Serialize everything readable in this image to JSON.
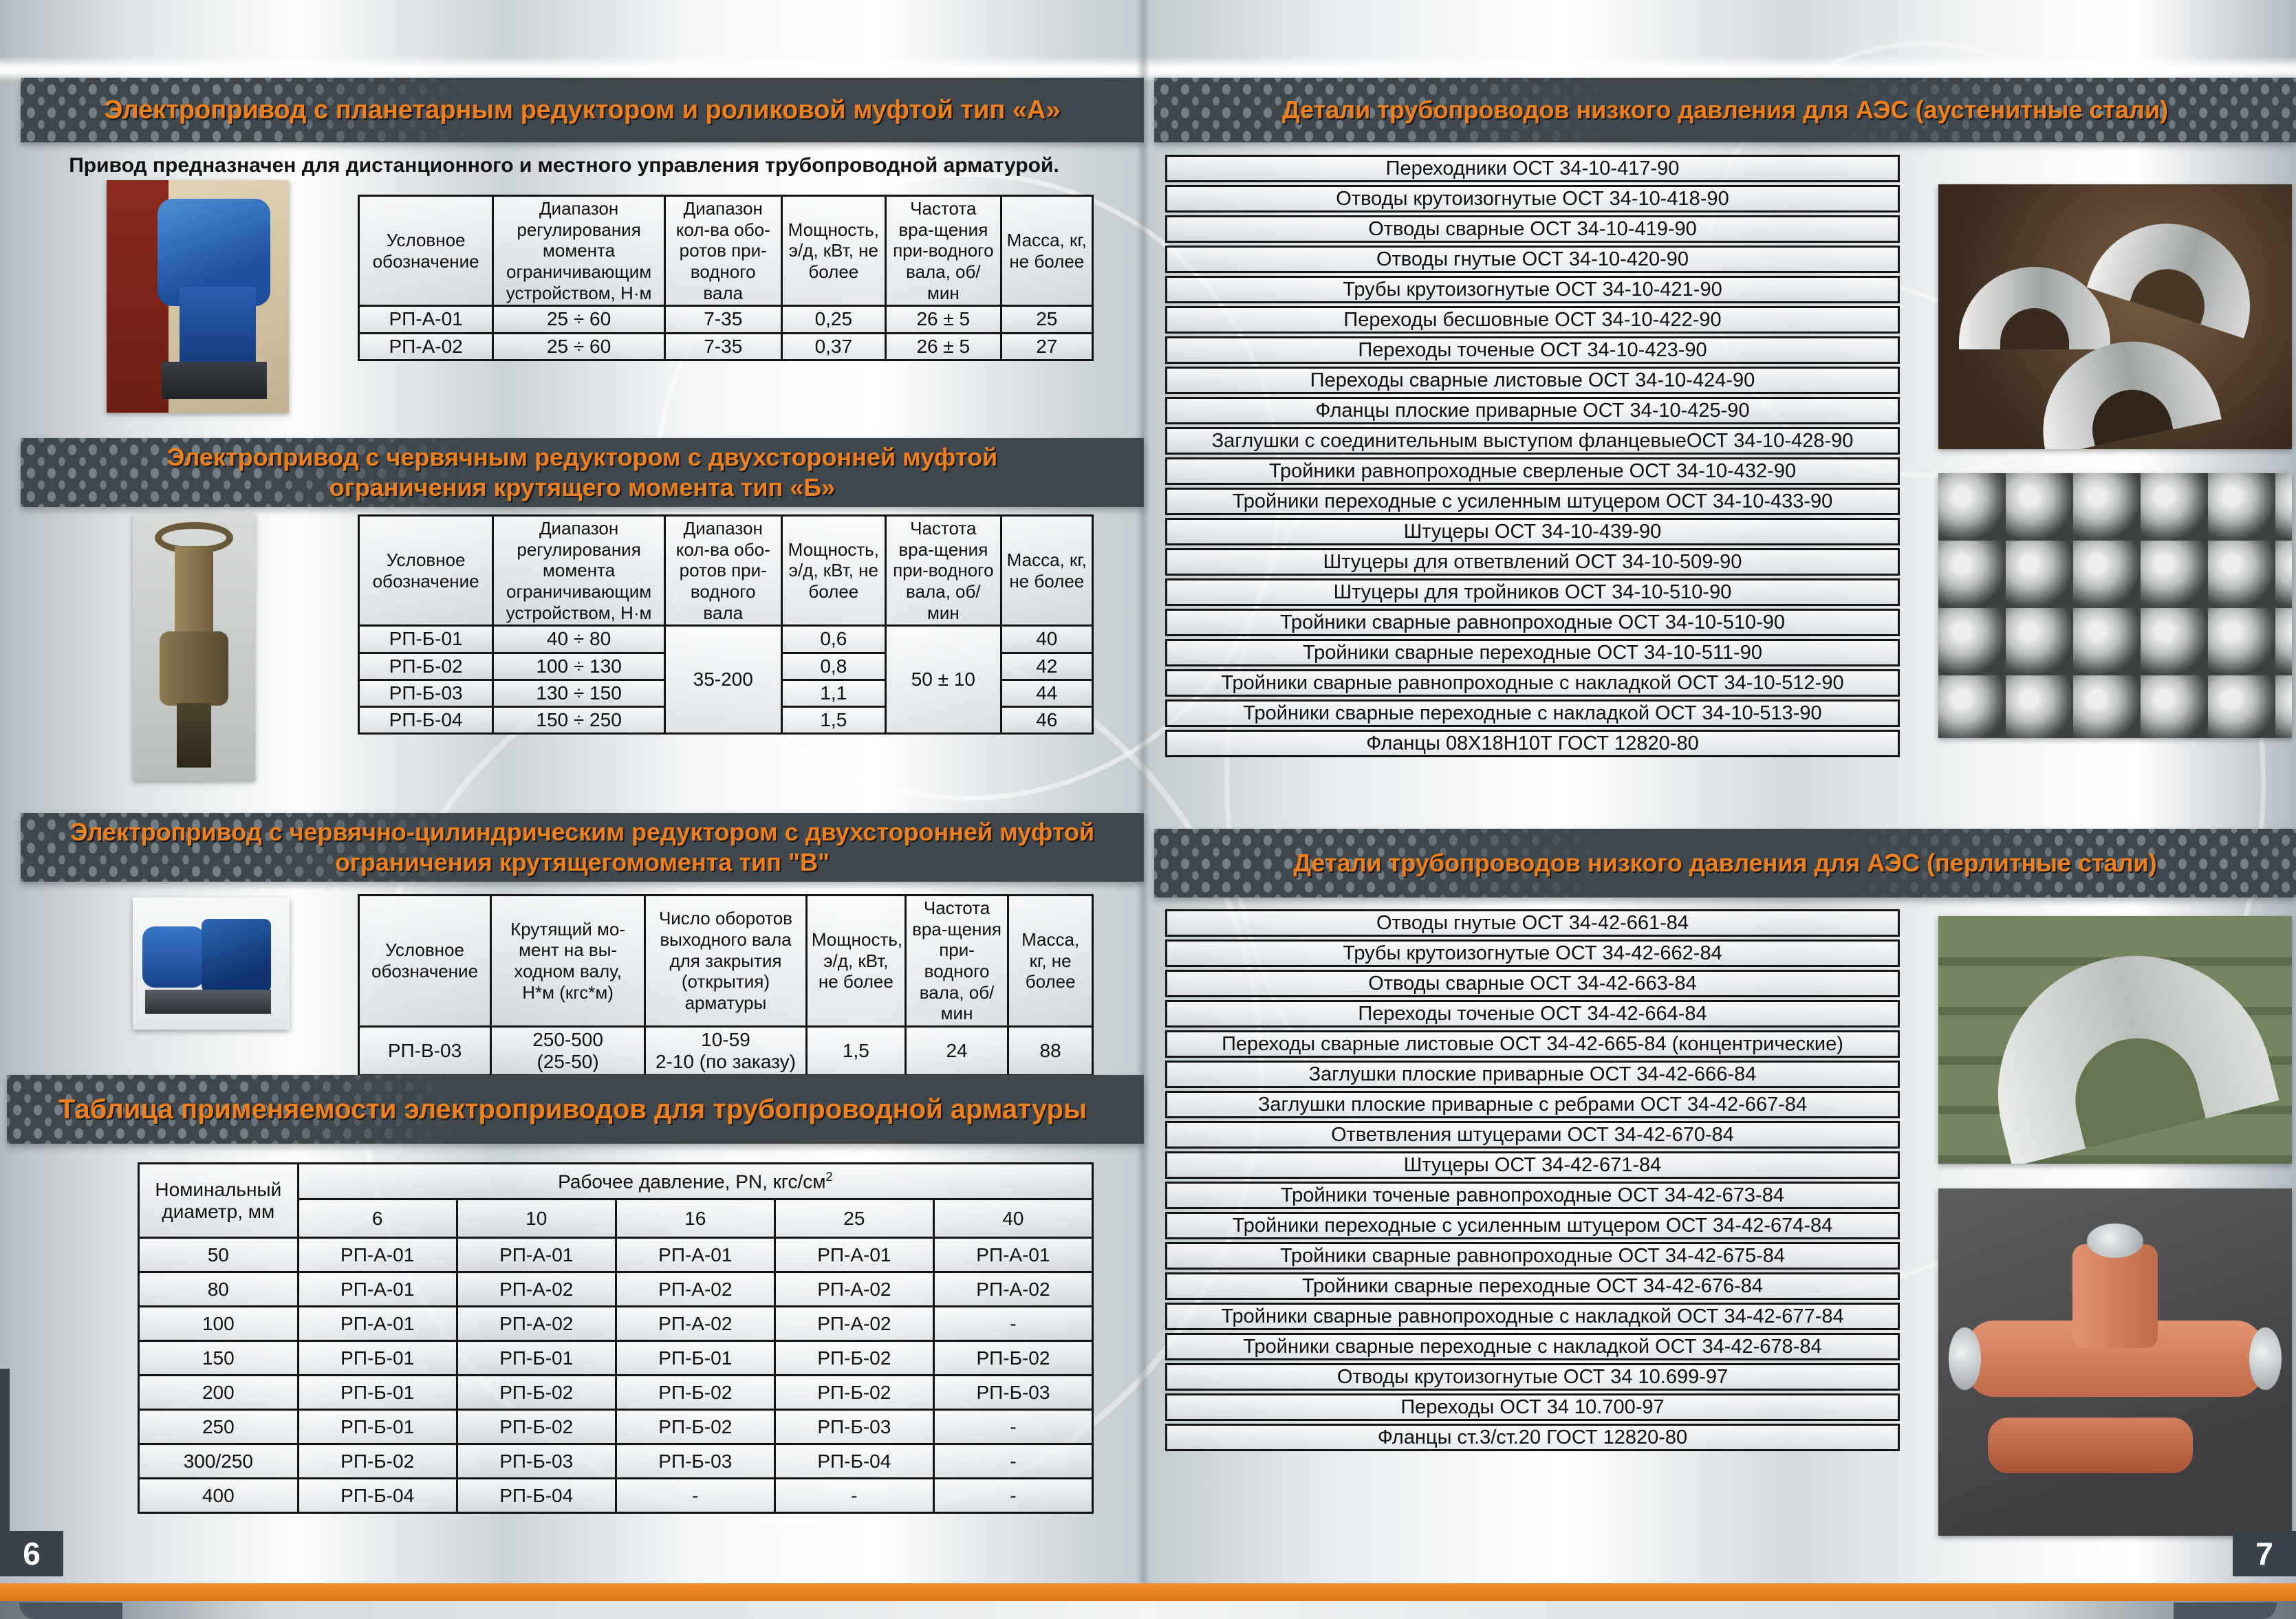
{
  "left": {
    "page_number": "6",
    "intro": "Привод предназначен для дистанционного и местного управления трубопроводной арматурой.",
    "spec_headers": [
      "Условное обозначение",
      "Диапазон регулирования момента ограничивающим устройством, Н·м",
      "Диапазон кол-ва обо-ротов при-водного вала",
      "Мощность, э/д, кВт, не более",
      "Частота вра-щения при-водного вала, об/мин",
      "Масса, кг, не более"
    ],
    "section_a": {
      "title": "Электропривод с планетарным редуктором и роликовой муфтой тип «А»",
      "rows": [
        [
          "РП-А-01",
          "25 ÷ 60",
          "7-35",
          "0,25",
          "26 ± 5",
          "25"
        ],
        [
          "РП-А-02",
          "25 ÷ 60",
          "7-35",
          "0,37",
          "26 ± 5",
          "27"
        ]
      ]
    },
    "section_b": {
      "title": "Электропривод с червячным редуктором с двухсторонней муфтой\nограничения крутящего момента тип «Б»",
      "shared_revolutions": "35-200",
      "shared_speed": "50 ± 10",
      "rows": [
        [
          "РП-Б-01",
          "40 ÷ 80",
          "0,6",
          "40"
        ],
        [
          "РП-Б-02",
          "100 ÷ 130",
          "0,8",
          "42"
        ],
        [
          "РП-Б-03",
          "130 ÷ 150",
          "1,1",
          "44"
        ],
        [
          "РП-Б-04",
          "150 ÷ 250",
          "1,5",
          "46"
        ]
      ]
    },
    "section_v": {
      "title": "Электропривод с червячно-цилиндрическим редуктором с двухсторонней муфтой\nограничения крутящегомомента тип \"В\"",
      "headers": [
        "Условное обозначение",
        "Крутящий мо-мент на вы-ходном валу, Н*м (кгс*м)",
        "Число оборотов выходного вала для закрытия (открытия) арматуры",
        "Мощность, э/д, кВт, не более",
        "Частота вра-щения при-водного вала, об/мин",
        "Масса, кг, не более"
      ],
      "rows": [
        [
          "РП-В-03",
          "250-500\n(25-50)",
          "10-59\n2-10 (по заказу)",
          "1,5",
          "24",
          "88"
        ]
      ]
    },
    "applicability": {
      "title": "Таблица применяемости электроприводов для трубопроводной арматуры",
      "diameter_header": "Номинальный диаметр, мм",
      "pressure_header": "Рабочее давление, PN, кгс/см",
      "pressure_sup": "2",
      "pressures": [
        "6",
        "10",
        "16",
        "25",
        "40"
      ],
      "rows": [
        {
          "dn": "50",
          "values": [
            "РП-А-01",
            "РП-А-01",
            "РП-А-01",
            "РП-А-01",
            "РП-А-01"
          ]
        },
        {
          "dn": "80",
          "values": [
            "РП-А-01",
            "РП-А-02",
            "РП-А-02",
            "РП-А-02",
            "РП-А-02"
          ]
        },
        {
          "dn": "100",
          "values": [
            "РП-А-01",
            "РП-А-02",
            "РП-А-02",
            "РП-А-02",
            "-"
          ]
        },
        {
          "dn": "150",
          "values": [
            "РП-Б-01",
            "РП-Б-01",
            "РП-Б-01",
            "РП-Б-02",
            "РП-Б-02"
          ]
        },
        {
          "dn": "200",
          "values": [
            "РП-Б-01",
            "РП-Б-02",
            "РП-Б-02",
            "РП-Б-02",
            "РП-Б-03"
          ]
        },
        {
          "dn": "250",
          "values": [
            "РП-Б-01",
            "РП-Б-02",
            "РП-Б-02",
            "РП-Б-03",
            "-"
          ]
        },
        {
          "dn": "300/250",
          "values": [
            "РП-Б-02",
            "РП-Б-03",
            "РП-Б-03",
            "РП-Б-04",
            "-"
          ]
        },
        {
          "dn": "400",
          "values": [
            "РП-Б-04",
            "РП-Б-04",
            "-",
            "-",
            "-"
          ]
        }
      ]
    }
  },
  "right": {
    "page_number": "7",
    "austenitic": {
      "title": "Детали трубопроводов низкого давления для АЭС (аустенитные стали)",
      "items": [
        "Переходники ОСТ 34-10-417-90",
        "Отводы крутоизогнутые ОСТ 34-10-418-90",
        "Отводы сварные ОСТ 34-10-419-90",
        "Отводы гнутые ОСТ 34-10-420-90",
        "Трубы крутоизогнутые ОСТ 34-10-421-90",
        "Переходы бесшовные ОСТ 34-10-422-90",
        "Переходы точеные ОСТ 34-10-423-90",
        "Переходы сварные листовые ОСТ 34-10-424-90",
        "Фланцы плоские приварные ОСТ 34-10-425-90",
        "Заглушки с соединительным выступом фланцевыеОСТ 34-10-428-90",
        "Тройники равнопроходные сверленые ОСТ 34-10-432-90",
        "Тройники переходные с усиленным штуцером ОСТ 34-10-433-90",
        "Штуцеры ОСТ 34-10-439-90",
        "Штуцеры для ответвлений ОСТ 34-10-509-90",
        "Штуцеры для тройников ОСТ 34-10-510-90",
        "Тройники сварные равнопроходные ОСТ 34-10-510-90",
        "Тройники сварные переходные ОСТ 34-10-511-90",
        "Тройники сварные равнопроходные с накладкой ОСТ 34-10-512-90",
        "Тройники сварные переходные с накладкой ОСТ 34-10-513-90",
        "Фланцы 08Х18Н10Т ГОСТ 12820-80"
      ]
    },
    "pearlitic": {
      "title": "Детали трубопроводов низкого давления для АЭС (перлитные стали)",
      "items": [
        "Отводы гнутые ОСТ 34-42-661-84",
        "Трубы крутоизогнутые ОСТ 34-42-662-84",
        "Отводы сварные ОСТ 34-42-663-84",
        "Переходы точеные ОСТ 34-42-664-84",
        "Переходы сварные листовые ОСТ 34-42-665-84 (концентрические)",
        "Заглушки плоские приварные ОСТ 34-42-666-84",
        "Заглушки плоские приварные с ребрами ОСТ 34-42-667-84",
        "Ответвления штуцерами ОСТ 34-42-670-84",
        "Штуцеры ОСТ 34-42-671-84",
        "Тройники точеные равнопроходные ОСТ 34-42-673-84",
        "Тройники переходные с усиленным штуцером ОСТ 34-42-674-84",
        "Тройники сварные равнопроходные ОСТ 34-42-675-84",
        "Тройники сварные переходные ОСТ 34-42-676-84",
        "Тройники сварные равнопроходные с накладкой ОСТ 34-42-677-84",
        "Тройники сварные переходные с накладкой ОСТ 34-42-678-84",
        "Отводы крутоизогнутые ОСТ 34 10.699-97",
        "Переходы ОСТ 34 10.700-97",
        "Фланцы ст.3/ст.20 ГОСТ 12820-80"
      ]
    }
  },
  "colors": {
    "banner_bg": "#3f474d",
    "accent_orange": "#ee7f1d"
  }
}
